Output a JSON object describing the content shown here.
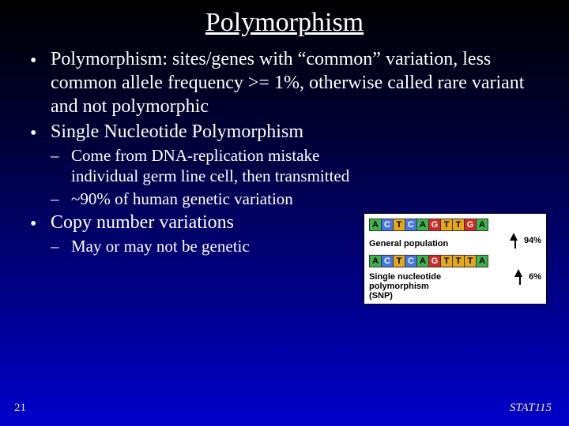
{
  "title": "Polymorphism",
  "bullets": {
    "b1a": "Polymorphism: sites/genes with “common” variation, less common allele frequency >= 1%, otherwise called rare variant and not polymorphic",
    "b1b": "Single Nucleotide Polymorphism",
    "b2a": "Come from DNA-replication mistake individual germ line cell, then transmitted",
    "b2b": "~90% of human genetic variation",
    "b1c": "Copy number variations",
    "b2c": "May or may not be genetic"
  },
  "figure": {
    "seq_top": [
      "A",
      "C",
      "T",
      "C",
      "A",
      "G",
      "T",
      "T",
      "G",
      "A"
    ],
    "seq_bot": [
      "A",
      "C",
      "T",
      "C",
      "A",
      "G",
      "T",
      "T",
      "T",
      "A"
    ],
    "label_general": "General population",
    "label_snp1": "Single nucleotide",
    "label_snp2": "polymorphism",
    "label_snp3": "(SNP)",
    "pct_top": "94%",
    "pct_bot": "6%",
    "colors": {
      "A": "#3cb44b",
      "C": "#4477ee",
      "T": "#e6a817",
      "G": "#d62728"
    }
  },
  "footer": {
    "page": "21",
    "course": "STAT115"
  }
}
